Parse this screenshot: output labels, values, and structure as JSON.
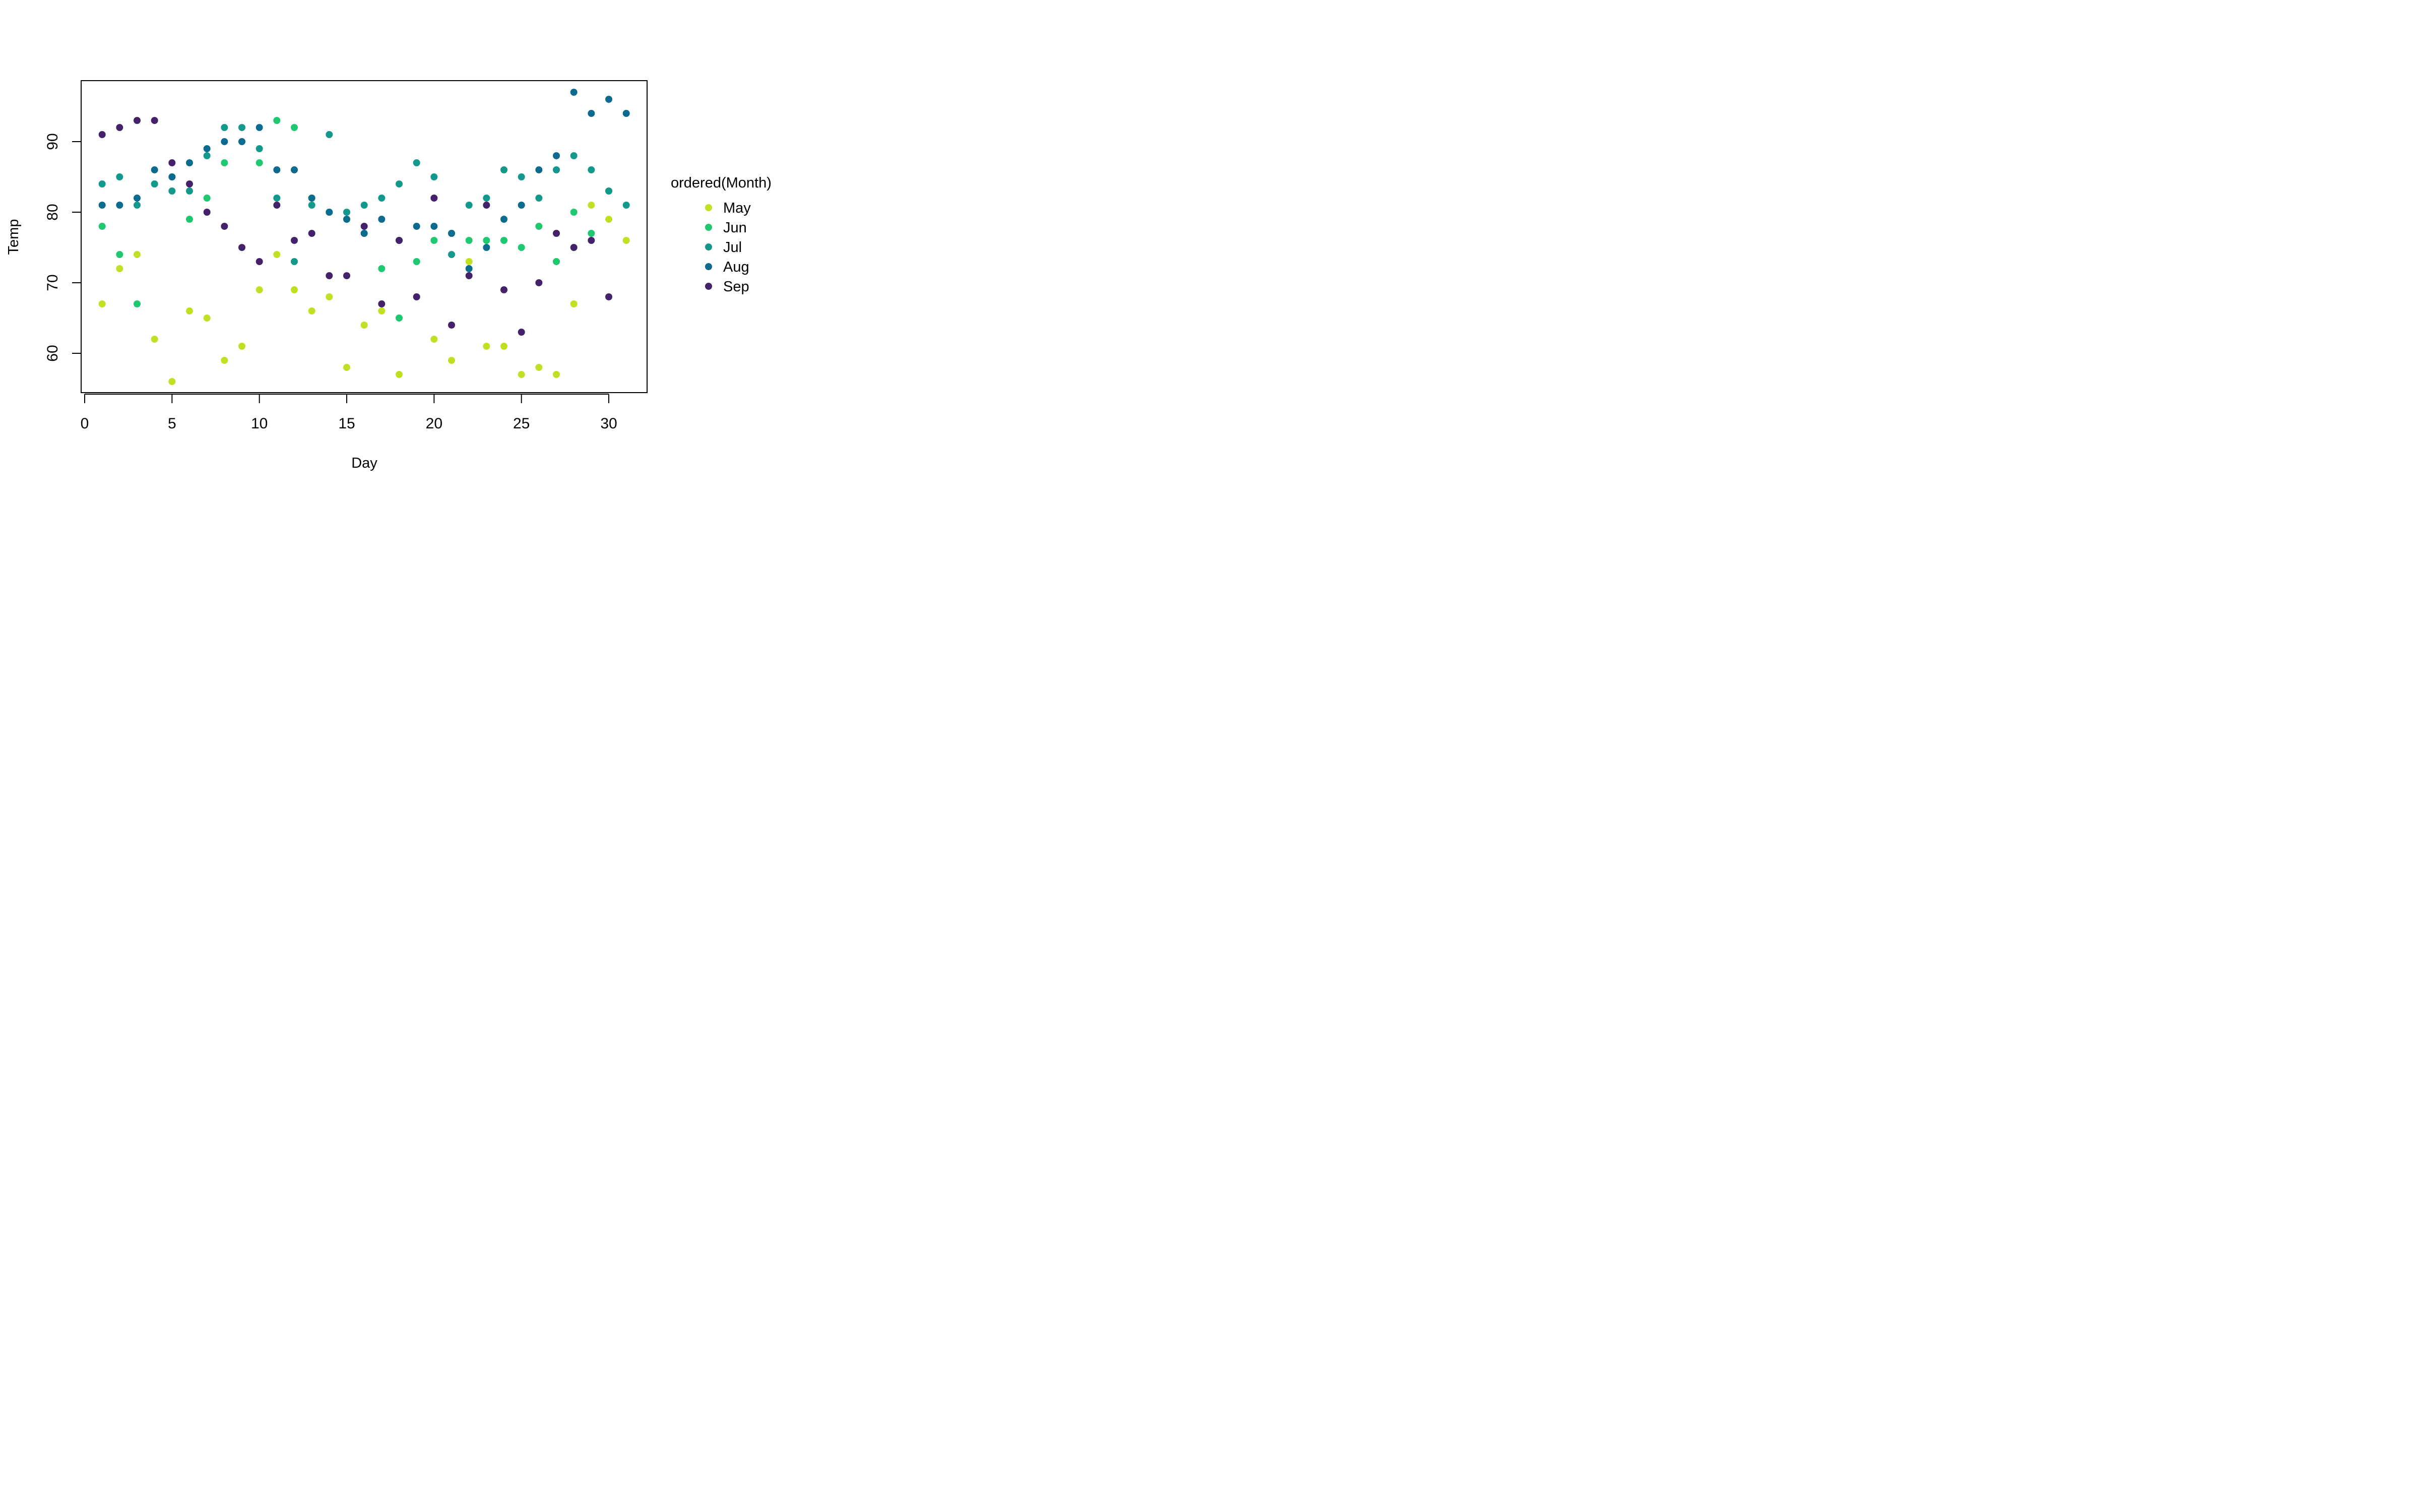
{
  "chart_data": {
    "type": "scatter",
    "title": "",
    "xlabel": "Day",
    "ylabel": "Temp",
    "xlim": [
      0,
      32
    ],
    "ylim": [
      56,
      97
    ],
    "xticks": [
      0,
      5,
      10,
      15,
      20,
      25,
      30
    ],
    "xtick_labels": [
      "0",
      "5",
      "10",
      "15",
      "20",
      "25",
      "30"
    ],
    "yticks": [
      60,
      70,
      80,
      90
    ],
    "ytick_labels": [
      "60",
      "70",
      "80",
      "90"
    ],
    "grid": false,
    "legend": {
      "title": "ordered(Month)",
      "placement": "right"
    },
    "series": [
      {
        "name": "May",
        "color": "#c2df23",
        "x": [
          1,
          2,
          3,
          4,
          5,
          6,
          7,
          8,
          9,
          10,
          11,
          12,
          13,
          14,
          15,
          16,
          17,
          18,
          19,
          20,
          21,
          22,
          23,
          24,
          25,
          26,
          27,
          28,
          29,
          30,
          31
        ],
        "y": [
          67,
          72,
          74,
          62,
          56,
          66,
          65,
          59,
          61,
          69,
          74,
          69,
          66,
          68,
          58,
          64,
          66,
          57,
          68,
          62,
          59,
          73,
          61,
          61,
          57,
          58,
          57,
          67,
          81,
          79,
          76
        ]
      },
      {
        "name": "Jun",
        "color": "#1fc870",
        "x": [
          1,
          2,
          3,
          4,
          5,
          6,
          7,
          8,
          9,
          10,
          11,
          12,
          13,
          14,
          15,
          16,
          17,
          18,
          19,
          20,
          21,
          22,
          23,
          24,
          25,
          26,
          27,
          28,
          29,
          30
        ],
        "y": [
          78,
          74,
          67,
          84,
          85,
          79,
          82,
          87,
          90,
          87,
          93,
          92,
          82,
          80,
          79,
          77,
          72,
          65,
          73,
          76,
          77,
          76,
          76,
          76,
          75,
          78,
          73,
          80,
          77,
          83
        ]
      },
      {
        "name": "Jul",
        "color": "#12998b",
        "x": [
          1,
          2,
          3,
          4,
          5,
          6,
          7,
          8,
          9,
          10,
          11,
          12,
          13,
          14,
          15,
          16,
          17,
          18,
          19,
          20,
          21,
          22,
          23,
          24,
          25,
          26,
          27,
          28,
          29,
          30,
          31
        ],
        "y": [
          84,
          85,
          81,
          84,
          83,
          83,
          88,
          92,
          92,
          89,
          82,
          73,
          81,
          91,
          80,
          81,
          82,
          84,
          87,
          85,
          74,
          81,
          82,
          86,
          85,
          82,
          86,
          88,
          86,
          83,
          81
        ]
      },
      {
        "name": "Aug",
        "color": "#0c6b8e",
        "x": [
          1,
          2,
          3,
          4,
          5,
          6,
          7,
          8,
          9,
          10,
          11,
          12,
          13,
          14,
          15,
          16,
          17,
          18,
          19,
          20,
          21,
          22,
          23,
          24,
          25,
          26,
          27,
          28,
          29,
          30,
          31
        ],
        "y": [
          81,
          81,
          82,
          86,
          85,
          87,
          89,
          90,
          90,
          92,
          86,
          86,
          82,
          80,
          79,
          77,
          79,
          76,
          78,
          78,
          77,
          72,
          75,
          79,
          81,
          86,
          88,
          97,
          94,
          96,
          94
        ]
      },
      {
        "name": "Sep",
        "color": "#44226b",
        "x": [
          1,
          2,
          3,
          4,
          5,
          6,
          7,
          8,
          9,
          10,
          11,
          12,
          13,
          14,
          15,
          16,
          17,
          18,
          19,
          20,
          21,
          22,
          23,
          24,
          25,
          26,
          27,
          28,
          29,
          30
        ],
        "y": [
          91,
          92,
          93,
          93,
          87,
          84,
          80,
          78,
          75,
          73,
          81,
          76,
          77,
          71,
          71,
          78,
          67,
          76,
          68,
          82,
          64,
          71,
          81,
          69,
          63,
          70,
          77,
          75,
          76,
          68
        ]
      }
    ]
  }
}
